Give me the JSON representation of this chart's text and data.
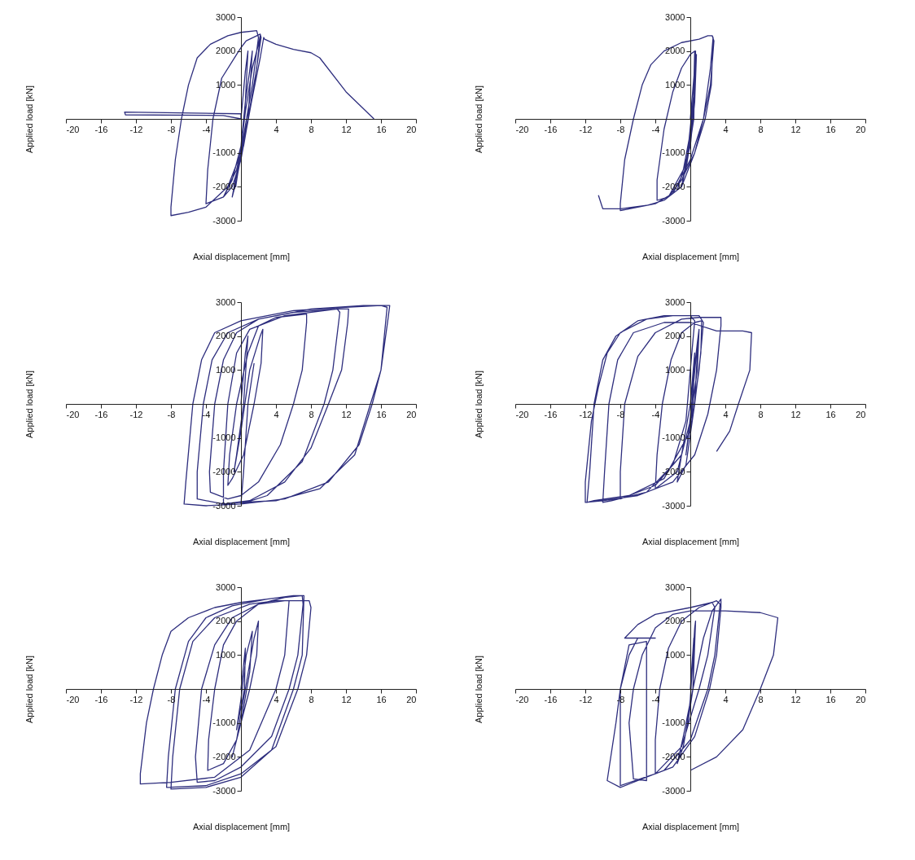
{
  "chart_data": [
    {
      "type": "line",
      "xlabel": "Axial displacement [mm]",
      "ylabel": "Applied load [kN]",
      "xlim": [
        -20,
        20
      ],
      "ylim": [
        -3000,
        3000
      ],
      "xticks": [
        -20,
        -16,
        -12,
        -8,
        -4,
        4,
        8,
        12,
        16,
        20
      ],
      "yticks": [
        -3000,
        -2000,
        -1000,
        1000,
        2000,
        3000
      ],
      "grid": false,
      "marker": "none",
      "series": [
        {
          "color": "#2e2e7e",
          "x": [
            0,
            0,
            -13.3,
            -13.2,
            -2,
            0,
            0.5,
            0.8,
            0.4,
            -0.3,
            -0.6,
            0,
            0.5,
            1.2,
            1.3,
            0.8,
            -0.5,
            -1,
            -0.2,
            0.5,
            1.3,
            2,
            2.2,
            1.8,
            0.8,
            -0.5,
            -2,
            -4,
            -3.8,
            -3.2,
            -2.2,
            -0.5,
            0,
            0.6,
            2.2,
            2.3,
            1.5,
            0.3,
            -1.5,
            -4,
            -6,
            -8,
            -8,
            -7.5,
            -6.8,
            -6,
            -5,
            -3.5,
            -1.5,
            0,
            1.8,
            2,
            1.3,
            0.3,
            -1,
            -2,
            -1,
            0,
            1.2,
            2.2,
            2.6,
            2.7,
            4,
            6,
            8,
            9,
            12,
            15.2
          ],
          "values": [
            0,
            150,
            200,
            120,
            100,
            0,
            1400,
            2000,
            0,
            -1500,
            -2000,
            -800,
            500,
            1800,
            2000,
            0,
            -1800,
            -2300,
            -1200,
            200,
            1500,
            2200,
            2450,
            1500,
            0,
            -1500,
            -2300,
            -2500,
            -1500,
            0,
            1200,
            1900,
            2100,
            2300,
            2500,
            2400,
            1000,
            -800,
            -2000,
            -2600,
            -2750,
            -2850,
            -2600,
            -1200,
            0,
            1000,
            1800,
            2200,
            2450,
            2550,
            2600,
            2400,
            1000,
            -500,
            -1800,
            -2300,
            -2000,
            -1200,
            500,
            1800,
            2400,
            2350,
            2200,
            2050,
            1950,
            1800,
            800,
            0
          ]
        }
      ]
    },
    {
      "type": "line",
      "xlabel": "Axial displacement [mm]",
      "ylabel": "Applied load [kN]",
      "xlim": [
        -20,
        20
      ],
      "ylim": [
        -3000,
        3000
      ],
      "xticks": [
        -20,
        -16,
        -12,
        -8,
        -4,
        4,
        8,
        12,
        16,
        20
      ],
      "yticks": [
        -3000,
        -2000,
        -1000,
        1000,
        2000,
        3000
      ],
      "grid": false,
      "marker": "none",
      "series": [
        {
          "color": "#2e2e7e",
          "x": [
            0,
            0.5,
            0.4,
            -0.5,
            0,
            0.5,
            0.6,
            0.3,
            -0.5,
            -1,
            -0.3,
            0.5,
            0.7,
            0.5,
            0,
            -1.5,
            -2.5,
            -3.8,
            -3.8,
            -3,
            -2,
            -1,
            0,
            0.5,
            0.3,
            -0.8,
            -2.5,
            -1,
            0.5,
            1.5,
            2.3,
            2.6,
            2.5,
            2.7,
            2.3,
            1.5,
            0,
            -2,
            -4,
            -6,
            -8,
            -8,
            -7.5,
            -6.5,
            -5.5,
            -4.5,
            -3,
            -1,
            1,
            2,
            2.5,
            2.6,
            2.4,
            1.7,
            0.5,
            -1,
            -3,
            -5,
            -8,
            -10,
            -10.5
          ],
          "values": [
            0,
            1500,
            0,
            -1500,
            -500,
            1000,
            2000,
            0,
            -1400,
            -2000,
            -1000,
            1000,
            1900,
            500,
            -800,
            -2100,
            -2300,
            -2400,
            -1800,
            -300,
            800,
            1500,
            1900,
            2000,
            0,
            -1500,
            -2300,
            -1800,
            -1000,
            0,
            1500,
            2400,
            2450,
            2300,
            1000,
            0,
            -1200,
            -2200,
            -2500,
            -2600,
            -2700,
            -2500,
            -1200,
            0,
            1000,
            1600,
            2000,
            2250,
            2350,
            2450,
            2450,
            2400,
            1000,
            0,
            -1000,
            -2000,
            -2400,
            -2550,
            -2650,
            -2650,
            -2250
          ]
        }
      ]
    },
    {
      "type": "line",
      "xlabel": "Axial displacement [mm]",
      "ylabel": "Applied load [kN]",
      "xlim": [
        -20,
        20
      ],
      "ylim": [
        -3000,
        3000
      ],
      "xticks": [
        -20,
        -16,
        -12,
        -8,
        -4,
        4,
        8,
        12,
        16,
        20
      ],
      "yticks": [
        -3000,
        -2000,
        -1000,
        1000,
        2000,
        3000
      ],
      "grid": false,
      "marker": "none",
      "series": [
        {
          "color": "#2e2e7e",
          "x": [
            0,
            0.5,
            0.8,
            0.3,
            -0.5,
            -0.8,
            0,
            1,
            2.2,
            2.5,
            2.3,
            1.5,
            0.3,
            -1,
            -1.5,
            -1.3,
            -0.5,
            0.8,
            2,
            4,
            7.5,
            7.5,
            7,
            6,
            4.5,
            2,
            0,
            -1.5,
            -3.5,
            -3.6,
            -3,
            -2,
            -0.5,
            2,
            6,
            11,
            12.3,
            12.2,
            11.5,
            10,
            8,
            5,
            1,
            -2,
            -5,
            -5,
            -4.3,
            -3.3,
            -1.5,
            2,
            8,
            14,
            17,
            16.8,
            16,
            15,
            13.5,
            10,
            5,
            0,
            -4,
            -6.5,
            -6.3,
            -5.5,
            -4.5,
            -3,
            0,
            6,
            12,
            16,
            16.7,
            16,
            14.8,
            13,
            9,
            4,
            0,
            -2,
            -2,
            -1.5,
            -0.5,
            1,
            5,
            11,
            11.3,
            10.5,
            9.5,
            7,
            3,
            0,
            0.3,
            0.8,
            1.5
          ],
          "values": [
            0,
            1500,
            2000,
            0,
            -1500,
            -2000,
            -800,
            1000,
            2000,
            2200,
            1200,
            0,
            -1500,
            -2200,
            -2400,
            -1500,
            0,
            1500,
            2300,
            2550,
            2650,
            2400,
            1000,
            0,
            -1200,
            -2300,
            -2700,
            -2800,
            -2600,
            -2000,
            0,
            1300,
            2100,
            2500,
            2700,
            2800,
            2800,
            2400,
            1000,
            0,
            -1300,
            -2300,
            -2850,
            -2950,
            -2800,
            -2000,
            0,
            1300,
            2100,
            2500,
            2800,
            2900,
            2900,
            2500,
            1000,
            0,
            -1200,
            -2300,
            -2800,
            -2950,
            -3000,
            -2950,
            -2300,
            0,
            1300,
            2100,
            2450,
            2750,
            2850,
            2900,
            2850,
            1000,
            0,
            -1500,
            -2500,
            -2850,
            -2900,
            -2950,
            -2000,
            0,
            1500,
            2200,
            2600,
            2800,
            2700,
            1000,
            0,
            -1700,
            -2700,
            -2950,
            -2000,
            0,
            1200
          ]
        }
      ]
    },
    {
      "type": "line",
      "xlabel": "Axial displacement [mm]",
      "ylabel": "Applied load [kN]",
      "xlim": [
        -20,
        20
      ],
      "ylim": [
        -3000,
        3000
      ],
      "xticks": [
        -20,
        -16,
        -12,
        -8,
        -4,
        4,
        8,
        12,
        16,
        20
      ],
      "yticks": [
        -3000,
        -2000,
        -1000,
        1000,
        2000,
        3000
      ],
      "grid": false,
      "marker": "none",
      "series": [
        {
          "color": "#2e2e7e",
          "x": [
            0,
            0.5,
            0.3,
            -0.5,
            0,
            0.7,
            0.9,
            0.5,
            -0.5,
            -1.5,
            -1,
            0,
            0.8,
            1,
            0.8,
            0,
            -1.5,
            -4,
            -3.8,
            -3.2,
            -2.2,
            -1,
            0.5,
            1.3,
            1.2,
            0.5,
            -1,
            -4,
            -8,
            -8,
            -7.5,
            -6,
            -4,
            -1,
            1,
            3.5,
            3.5,
            3,
            2,
            0.5,
            -2,
            -6,
            -10,
            -12,
            -12,
            -11.3,
            -10.5,
            -9.5,
            -8,
            -5,
            -2,
            1,
            1.5,
            1,
            0,
            -3,
            -7,
            -11,
            -11.8,
            -11.5,
            -11,
            -10,
            -8.5,
            -6,
            -3,
            0,
            0.5,
            0,
            -0.5,
            -2,
            -5,
            -9,
            -10,
            -9.8,
            -9.3,
            -8.3,
            -6.5,
            -3,
            0,
            3,
            6,
            7,
            6.8,
            5.5,
            4.5,
            3
          ],
          "values": [
            0,
            1500,
            0,
            -1500,
            -400,
            1500,
            2000,
            0,
            -1800,
            -2300,
            -1500,
            0,
            1800,
            2200,
            1000,
            -500,
            -2000,
            -2500,
            -1500,
            0,
            1300,
            2100,
            2400,
            2450,
            1500,
            0,
            -1500,
            -2400,
            -2800,
            -2000,
            0,
            1400,
            2100,
            2500,
            2550,
            2550,
            2300,
            1000,
            -300,
            -1500,
            -2300,
            -2700,
            -2850,
            -2900,
            -2300,
            -500,
            500,
            1500,
            2100,
            2500,
            2600,
            2600,
            2400,
            1000,
            -800,
            -2200,
            -2700,
            -2850,
            -2900,
            -2000,
            0,
            1300,
            2000,
            2450,
            2600,
            2600,
            2450,
            1000,
            -500,
            -1800,
            -2600,
            -2850,
            -2900,
            -2000,
            0,
            1300,
            2100,
            2400,
            2400,
            2150,
            2150,
            2100,
            1000,
            0,
            -800,
            -1400
          ]
        }
      ]
    },
    {
      "type": "line",
      "xlabel": "Axial displacement [mm]",
      "ylabel": "Applied load [kN]",
      "xlim": [
        -20,
        20
      ],
      "ylim": [
        -3000,
        3000
      ],
      "xticks": [
        -20,
        -16,
        -12,
        -8,
        -4,
        4,
        8,
        12,
        16,
        20
      ],
      "yticks": [
        -3000,
        -2000,
        -1000,
        1000,
        2000,
        3000
      ],
      "grid": false,
      "marker": "none",
      "series": [
        {
          "color": "#2e2e7e",
          "x": [
            0,
            0.5,
            0.4,
            -0.5,
            0,
            0.6,
            1.3,
            1,
            0,
            -1,
            -0.5,
            0.5,
            1.5,
            2,
            1.8,
            1,
            -0.5,
            -2,
            -3.8,
            -3.7,
            -3,
            -2,
            -0.5,
            2,
            5,
            7,
            7.1,
            6.5,
            5.5,
            3.5,
            0,
            -3,
            -5,
            -5.2,
            -4.5,
            -3,
            -1,
            2,
            5,
            7.8,
            8,
            7.5,
            6.5,
            4,
            0,
            -4,
            -8.5,
            -8.3,
            -7.5,
            -6,
            -4,
            -1,
            3,
            6,
            7.2,
            7,
            6,
            3.5,
            0,
            -4,
            -8,
            -7.8,
            -7,
            -5.5,
            -3,
            1,
            4,
            5.5,
            5,
            4,
            1,
            -3,
            -8,
            -11.5,
            -11.5,
            -10.8,
            -10,
            -9,
            -8,
            -6,
            -3,
            0,
            3
          ],
          "values": [
            0,
            1200,
            0,
            -1200,
            -300,
            1000,
            1700,
            500,
            -1000,
            -2000,
            -1500,
            0,
            1500,
            2000,
            1000,
            0,
            -1500,
            -2200,
            -2400,
            -1500,
            0,
            1300,
            2000,
            2500,
            2700,
            2750,
            2500,
            1000,
            0,
            -1400,
            -2300,
            -2700,
            -2750,
            -2000,
            0,
            1300,
            2100,
            2500,
            2600,
            2600,
            2400,
            1000,
            0,
            -1700,
            -2500,
            -2850,
            -2900,
            -2000,
            0,
            1400,
            2100,
            2450,
            2650,
            2750,
            2750,
            1000,
            0,
            -1800,
            -2600,
            -2900,
            -2950,
            -2000,
            0,
            1400,
            2100,
            2500,
            2600,
            2600,
            1000,
            0,
            -1800,
            -2600,
            -2750,
            -2800,
            -2500,
            -1000,
            0,
            1000,
            1700,
            2100,
            2400,
            2550,
            2650
          ]
        }
      ]
    },
    {
      "type": "line",
      "xlabel": "Axial displacement [mm]",
      "ylabel": "Applied load [kN]",
      "xlim": [
        -20,
        20
      ],
      "ylim": [
        -3000,
        3000
      ],
      "xticks": [
        -20,
        -16,
        -12,
        -8,
        -4,
        4,
        8,
        12,
        16,
        20
      ],
      "yticks": [
        -3000,
        -2000,
        -1000,
        1000,
        2000,
        3000
      ],
      "grid": false,
      "marker": "none",
      "series": [
        {
          "color": "#2e2e7e",
          "x": [
            0,
            0.4,
            0.3,
            -0.4,
            0,
            0.5,
            0.6,
            0.3,
            -0.8,
            -1.5,
            -0.8,
            0.3,
            1.5,
            2.5,
            3.5,
            3.5,
            3,
            2.2,
            0.5,
            -2,
            -4,
            -4,
            -3.5,
            -2.5,
            -1,
            1,
            3,
            3.4,
            2.8,
            2,
            0,
            -3,
            -6,
            -8,
            -9.5,
            -8.5,
            -8,
            -7,
            -6,
            -4,
            -7.5,
            -6,
            -4,
            0,
            2.5,
            2.8,
            2,
            1,
            -1,
            -4,
            -8,
            -8,
            -7,
            -5,
            -5,
            -6.5,
            -7,
            -6.5,
            -5.5,
            -4,
            -2,
            0,
            4,
            8,
            10,
            9.5,
            8,
            6,
            3,
            0
          ],
          "values": [
            0,
            1500,
            0,
            -1200,
            -300,
            1800,
            2000,
            0,
            -1700,
            -2200,
            -1400,
            0,
            1500,
            2300,
            2650,
            2400,
            1000,
            0,
            -1400,
            -2300,
            -2500,
            -1500,
            0,
            1200,
            2000,
            2400,
            2600,
            2500,
            1000,
            0,
            -1500,
            -2400,
            -2700,
            -2900,
            -2700,
            -1000,
            0,
            1000,
            1500,
            1500,
            1500,
            1900,
            2200,
            2400,
            2550,
            2400,
            1000,
            0,
            -1700,
            -2500,
            -2850,
            0,
            1300,
            1400,
            -2700,
            -2650,
            -1000,
            0,
            1000,
            1800,
            2200,
            2300,
            2300,
            2250,
            2100,
            1000,
            0,
            -1200,
            -2000,
            -2400
          ]
        }
      ]
    }
  ]
}
